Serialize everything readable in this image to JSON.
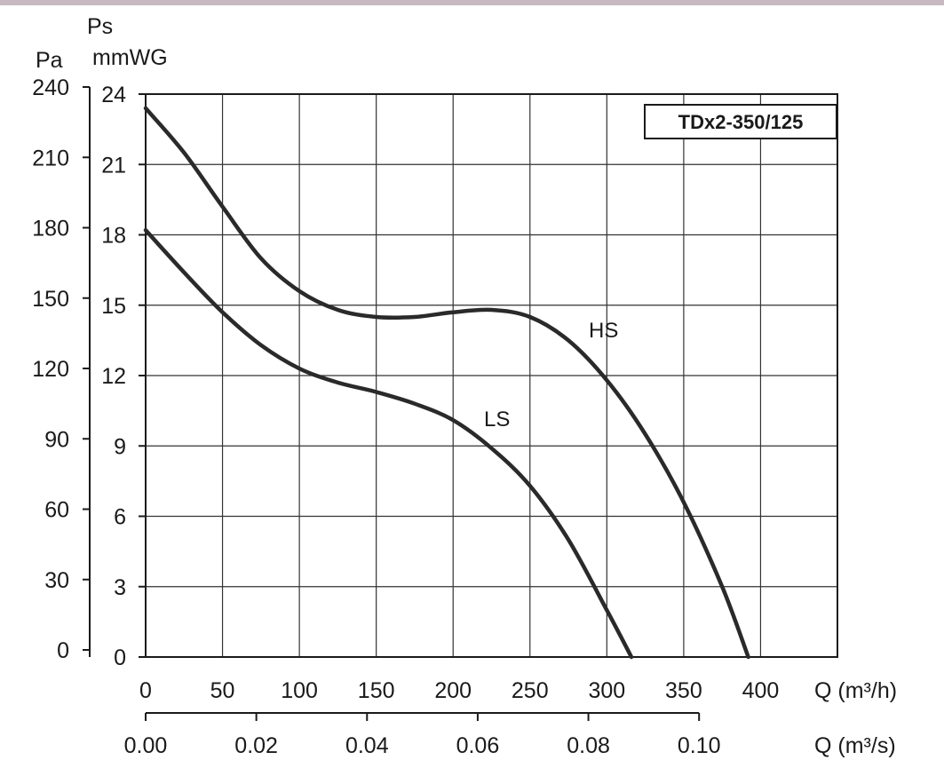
{
  "chart_data": {
    "type": "line",
    "title": "TDx2-350/125",
    "left_axis_label": "Pa",
    "right_axis_label_line1": "Ps",
    "right_axis_label_line2": "mmWG",
    "x_unit_label": "Q (m³/h)",
    "x2_unit_label": "Q (m³/s)",
    "x_ticks": [
      0,
      50,
      100,
      150,
      200,
      250,
      300,
      350,
      400
    ],
    "x_lim": [
      0,
      450
    ],
    "x2_ticks": [
      "0.00",
      "0.02",
      "0.04",
      "0.06",
      "0.08",
      "0.10"
    ],
    "y_pa_ticks": [
      0,
      30,
      60,
      90,
      120,
      150,
      180,
      210,
      240
    ],
    "y_mmwg_ticks": [
      0,
      3,
      6,
      9,
      12,
      15,
      18,
      21,
      24
    ],
    "y_lim_mmwg": [
      0,
      24
    ],
    "grid": true,
    "series": [
      {
        "name": "HS",
        "points": [
          [
            0,
            23.4
          ],
          [
            25,
            21.5
          ],
          [
            50,
            19.2
          ],
          [
            75,
            17.0
          ],
          [
            100,
            15.6
          ],
          [
            125,
            14.8
          ],
          [
            150,
            14.5
          ],
          [
            175,
            14.5
          ],
          [
            200,
            14.7
          ],
          [
            225,
            14.8
          ],
          [
            250,
            14.5
          ],
          [
            275,
            13.5
          ],
          [
            300,
            11.8
          ],
          [
            325,
            9.5
          ],
          [
            350,
            6.6
          ],
          [
            375,
            3.0
          ],
          [
            392,
            0
          ]
        ]
      },
      {
        "name": "LS",
        "points": [
          [
            0,
            18.2
          ],
          [
            25,
            16.4
          ],
          [
            50,
            14.7
          ],
          [
            75,
            13.3
          ],
          [
            100,
            12.3
          ],
          [
            125,
            11.7
          ],
          [
            150,
            11.3
          ],
          [
            175,
            10.8
          ],
          [
            200,
            10.1
          ],
          [
            225,
            8.9
          ],
          [
            250,
            7.3
          ],
          [
            275,
            5.0
          ],
          [
            300,
            2.0
          ],
          [
            316,
            0
          ]
        ]
      }
    ],
    "colors": {
      "curve": "#2a2a2a",
      "grid": "#333333",
      "axis": "#1a1a1a"
    }
  }
}
